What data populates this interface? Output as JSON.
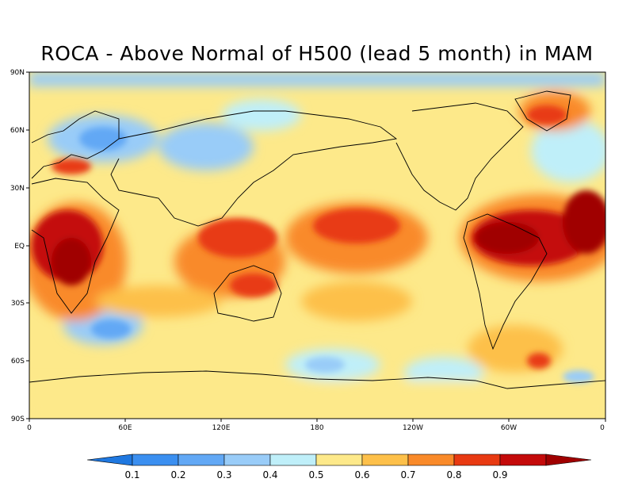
{
  "title": "ROCA - Above Normal of H500 (lead 5 month) in MAM",
  "map": {
    "lat_ticks": [
      "90N",
      "60N",
      "30N",
      "EQ",
      "30S",
      "60S",
      "90S"
    ],
    "lon_ticks": [
      "0",
      "60E",
      "120E",
      "180",
      "120W",
      "60W",
      "0"
    ]
  },
  "colorbar": {
    "labels": [
      "0.1",
      "0.2",
      "0.3",
      "0.4",
      "0.5",
      "0.6",
      "0.7",
      "0.8",
      "0.9"
    ],
    "colors": [
      "#1f78e0",
      "#3b8ff0",
      "#62a8f5",
      "#99ccf8",
      "#bfeff9",
      "#fde98a",
      "#fdc04a",
      "#f98a2a",
      "#e83a12",
      "#c40a0a",
      "#a00000"
    ]
  }
}
